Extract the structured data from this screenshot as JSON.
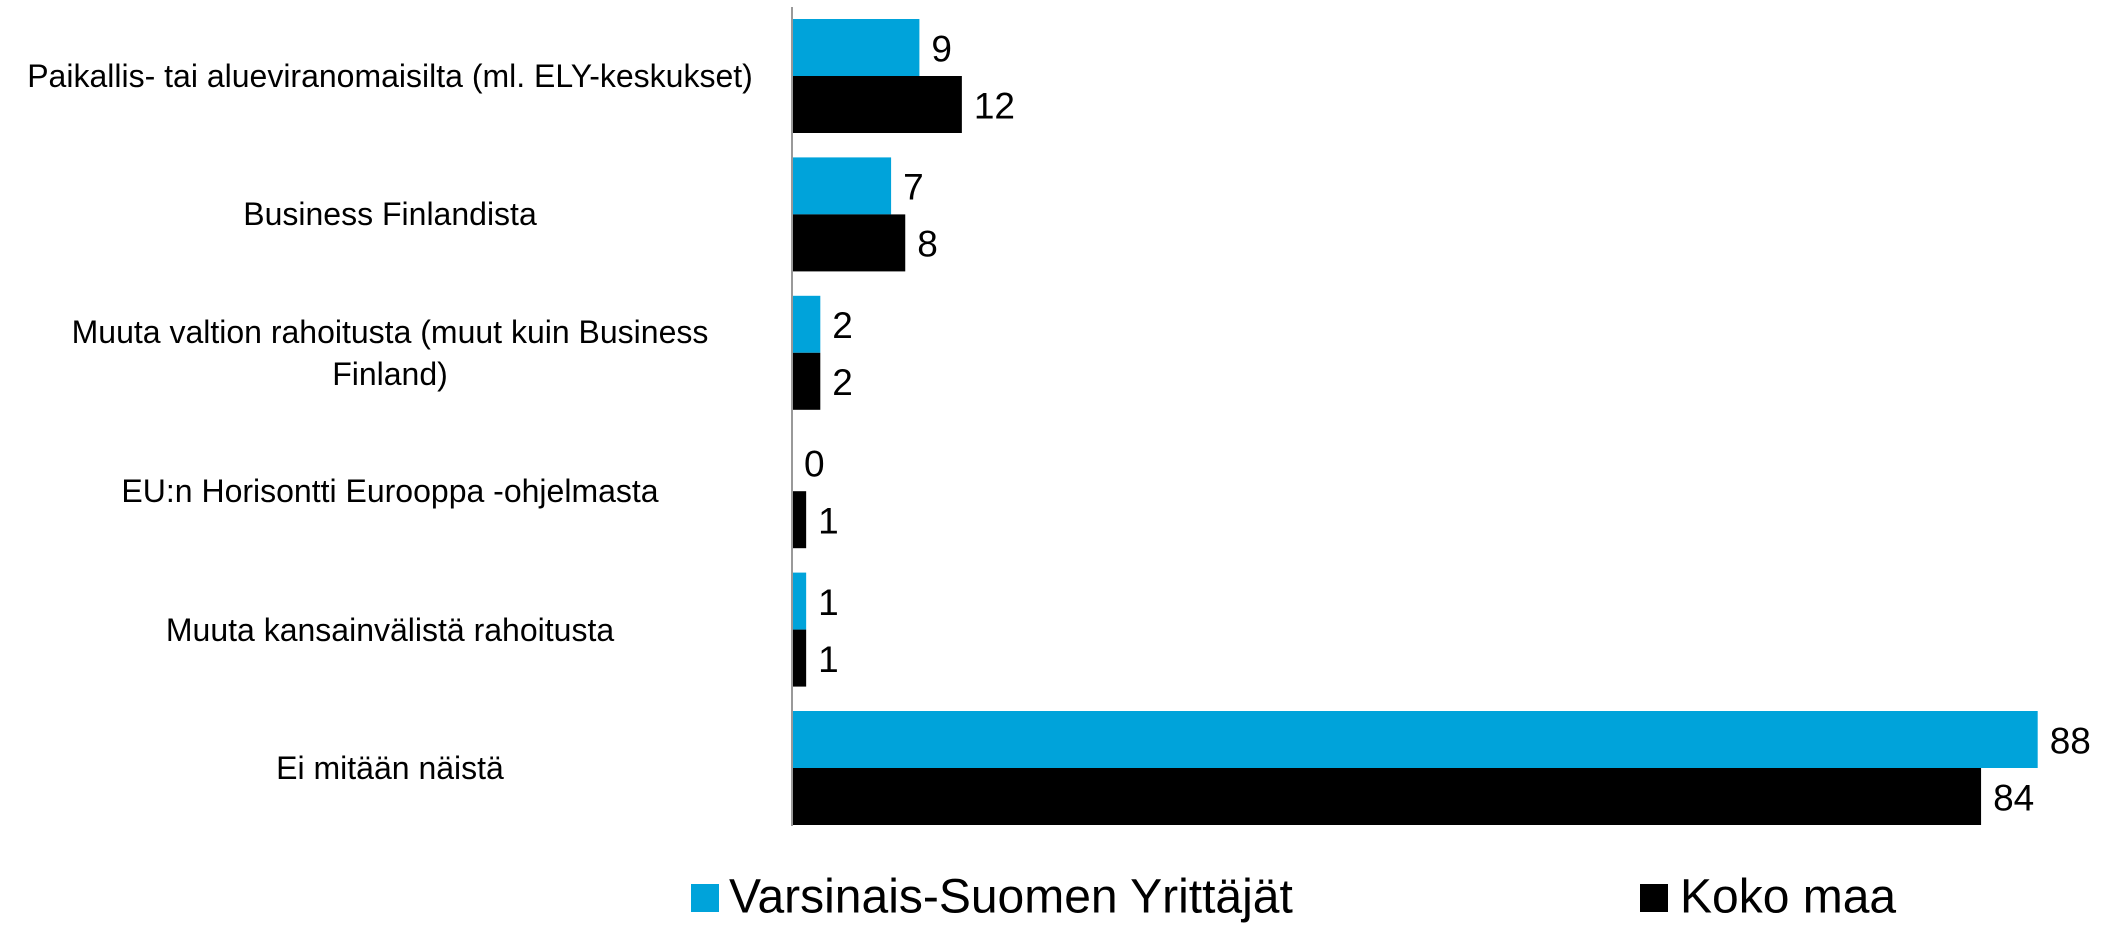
{
  "chart_data": {
    "type": "barh",
    "categories": [
      "Paikallis- tai alueviranomaisilta (ml. ELY-keskukset)",
      "Business Finlandista",
      "Muuta valtion rahoitusta (muut kuin Business Finland)",
      "EU:n Horisontti Eurooppa -ohjelmasta",
      "Muuta kansainvälistä rahoitusta",
      "Ei mitään näistä"
    ],
    "series": [
      {
        "name": "Varsinais-Suomen Yrittäjät",
        "color": "#00a3da",
        "values": [
          9,
          7,
          2,
          0,
          1,
          88
        ]
      },
      {
        "name": "Koko maa",
        "color": "#000000",
        "values": [
          12,
          8,
          2,
          1,
          1,
          84
        ]
      }
    ],
    "xlim": [
      0,
      90
    ]
  }
}
